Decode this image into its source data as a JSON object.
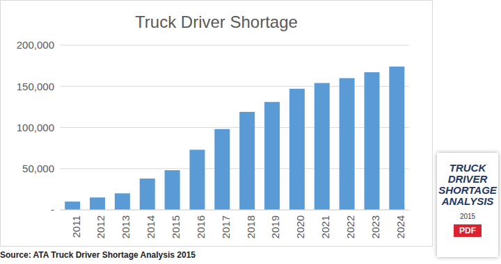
{
  "chart_data": {
    "type": "bar",
    "title": "Truck Driver Shortage",
    "subtitle": "Source: ATA Truck Driver Shortage Analysis 2015",
    "categories": [
      "2011",
      "2012",
      "2013",
      "2014",
      "2015",
      "2016",
      "2017",
      "2018",
      "2019",
      "2020",
      "2021",
      "2022",
      "2023",
      "2024"
    ],
    "values": [
      10000,
      15000,
      20000,
      38000,
      48000,
      73000,
      98000,
      119000,
      131000,
      147000,
      154000,
      160000,
      167000,
      174000
    ],
    "color": "#5b9bd5",
    "ylim": [
      0,
      200000
    ],
    "yticks": [
      {
        "value": 0,
        "label": "-"
      },
      {
        "value": 50000,
        "label": "50,000"
      },
      {
        "value": 100000,
        "label": "100,000"
      },
      {
        "value": 150000,
        "label": "150,000"
      },
      {
        "value": 200000,
        "label": "200,000"
      }
    ],
    "grid": true,
    "annotations": [
      "TRUCK DRIVER SHORTAGE ANALYSIS",
      "2015",
      "PDF"
    ]
  }
}
